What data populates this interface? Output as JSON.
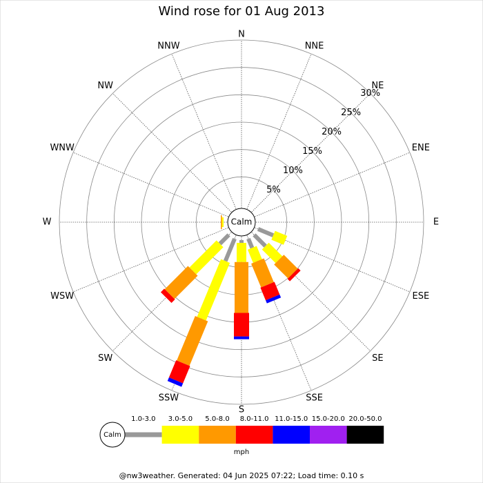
{
  "chart_data": {
    "type": "windrose",
    "title": "Wind rose for 01 Aug 2013",
    "calm_label": "Calm",
    "unit": "mph",
    "footer": "@nw3weather. Generated: 04 Jun 2025 07:22; Load time: 0.10 s",
    "categories": [
      "N",
      "NNE",
      "NE",
      "ENE",
      "E",
      "ESE",
      "SE",
      "SSE",
      "S",
      "SSW",
      "SW",
      "WSW",
      "W",
      "WNW",
      "NW",
      "NNW"
    ],
    "rlim": [
      0,
      30
    ],
    "rticks": [
      {
        "value": 5,
        "label": "5%"
      },
      {
        "value": 10,
        "label": "10%"
      },
      {
        "value": 15,
        "label": "15%"
      },
      {
        "value": 20,
        "label": "20%"
      },
      {
        "value": 25,
        "label": "25%"
      },
      {
        "value": 30,
        "label": "30%"
      }
    ],
    "series": [
      {
        "name": "1.0-3.0",
        "color": "#999999",
        "values": [
          0,
          0,
          0,
          0,
          0,
          3.0,
          2.9,
          1.8,
          0.5,
          4.4,
          2.3,
          0,
          0,
          0,
          0,
          0
        ]
      },
      {
        "name": "3.0-5.0",
        "color": "#ffff00",
        "values": [
          0,
          0,
          0,
          0,
          0,
          2.4,
          3.5,
          2.6,
          3.5,
          11.4,
          7.0,
          0,
          0.3,
          0,
          0,
          0
        ]
      },
      {
        "name": "5.0-8.0",
        "color": "#ff9900",
        "values": [
          0,
          0,
          0,
          0,
          0,
          0,
          3.6,
          4.7,
          9.3,
          8.8,
          6.0,
          0,
          0.2,
          0,
          0,
          0
        ]
      },
      {
        "name": "8.0-11.0",
        "color": "#ff0000",
        "values": [
          0,
          0,
          0,
          0,
          0,
          0,
          0.6,
          2.5,
          4.3,
          3.4,
          0.9,
          0,
          0,
          0,
          0,
          0
        ]
      },
      {
        "name": "11.0-15.0",
        "color": "#0000ff",
        "values": [
          0,
          0,
          0,
          0,
          0,
          0,
          0,
          0.6,
          0.5,
          0.7,
          0,
          0,
          0,
          0,
          0,
          0
        ]
      },
      {
        "name": "15.0-20.0",
        "color": "#a020f0",
        "values": [
          0,
          0,
          0,
          0,
          0,
          0,
          0,
          0,
          0,
          0,
          0,
          0,
          0,
          0,
          0,
          0
        ]
      },
      {
        "name": "20.0-50.0",
        "color": "#000000",
        "values": [
          0,
          0,
          0,
          0,
          0,
          0,
          0,
          0,
          0,
          0,
          0,
          0,
          0,
          0,
          0,
          0
        ]
      }
    ]
  }
}
